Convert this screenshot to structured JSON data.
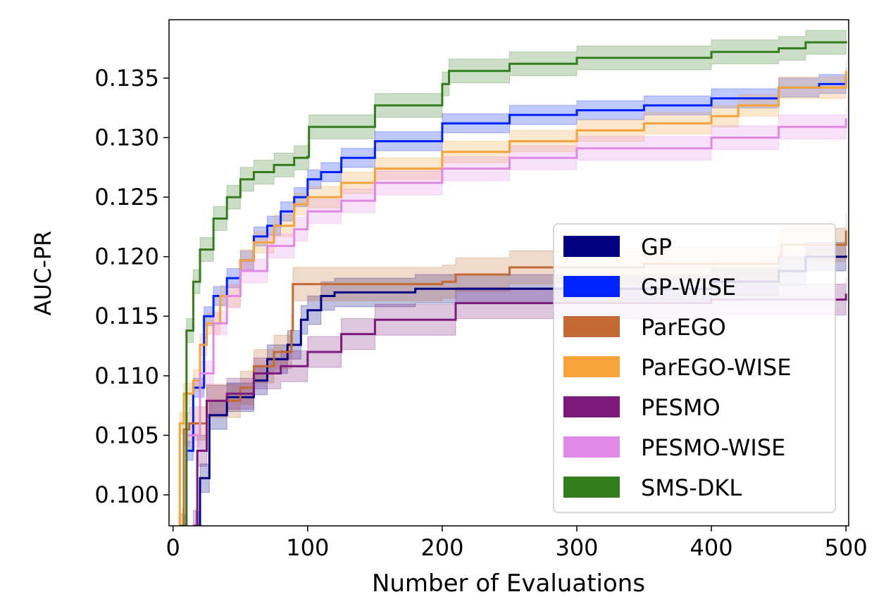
{
  "chart_data": {
    "type": "line",
    "title": "",
    "xlabel": "Number of Evaluations",
    "ylabel": "AUC-PR",
    "xlim": [
      -3,
      502
    ],
    "ylim": [
      0.0974,
      0.1399
    ],
    "xticks": [
      0,
      100,
      200,
      300,
      400,
      500
    ],
    "yticks": [
      0.1,
      0.105,
      0.11,
      0.115,
      0.12,
      0.125,
      0.13,
      0.135
    ],
    "ytick_labels": [
      "0.100",
      "0.105",
      "0.110",
      "0.115",
      "0.120",
      "0.125",
      "0.130",
      "0.135"
    ],
    "grid": false,
    "legend_placement": "lower-right",
    "series": [
      {
        "name": "GP",
        "color": "#000080",
        "band": 0.0012,
        "x": [
          17,
          20,
          27,
          40,
          60,
          70,
          85,
          95,
          100,
          110,
          120,
          180,
          400,
          450,
          470,
          500
        ],
        "y": [
          0.0974,
          0.1014,
          0.1067,
          0.1082,
          0.1096,
          0.1114,
          0.1126,
          0.1147,
          0.1155,
          0.1167,
          0.117,
          0.1173,
          0.1179,
          0.1188,
          0.12,
          0.1201
        ]
      },
      {
        "name": "GP-WISE",
        "color": "#0022ff",
        "band": 0.0008,
        "x": [
          8,
          10,
          15,
          23,
          30,
          40,
          50,
          60,
          70,
          80,
          90,
          100,
          110,
          125,
          150,
          200,
          250,
          300,
          350,
          400,
          450,
          480,
          500
        ],
        "y": [
          0.0974,
          0.1037,
          0.109,
          0.115,
          0.1167,
          0.1182,
          0.1197,
          0.1217,
          0.1226,
          0.1238,
          0.125,
          0.1265,
          0.1271,
          0.1283,
          0.1297,
          0.1312,
          0.1319,
          0.1323,
          0.1327,
          0.1333,
          0.1342,
          0.1345,
          0.1351
        ]
      },
      {
        "name": "ParEGO",
        "color": "#c46a34",
        "band": 0.0014,
        "x": [
          7,
          8,
          12,
          25,
          50,
          60,
          75,
          88,
          89,
          200,
          210,
          250,
          350,
          450,
          452,
          500
        ],
        "y": [
          0.0974,
          0.1055,
          0.106,
          0.1079,
          0.109,
          0.1108,
          0.112,
          0.1138,
          0.1177,
          0.1179,
          0.1185,
          0.1191,
          0.1194,
          0.12,
          0.121,
          0.1222
        ]
      },
      {
        "name": "ParEGO-WISE",
        "color": "#f5a33a",
        "band": 0.0009,
        "x": [
          4,
          5,
          8,
          15,
          20,
          25,
          35,
          50,
          60,
          75,
          90,
          100,
          125,
          150,
          200,
          250,
          300,
          350,
          400,
          420,
          450,
          500
        ],
        "y": [
          0.0974,
          0.106,
          0.1085,
          0.1096,
          0.1126,
          0.1144,
          0.1167,
          0.1197,
          0.1212,
          0.1226,
          0.1244,
          0.125,
          0.1262,
          0.1274,
          0.1288,
          0.1297,
          0.1306,
          0.1312,
          0.1318,
          0.1327,
          0.1342,
          0.1356
        ]
      },
      {
        "name": "PESMO",
        "color": "#7b1a7b",
        "band": 0.0013,
        "x": [
          15,
          18,
          25,
          40,
          60,
          80,
          100,
          125,
          150,
          210,
          400,
          500
        ],
        "y": [
          0.0974,
          0.1037,
          0.1079,
          0.1085,
          0.1102,
          0.1108,
          0.112,
          0.1135,
          0.1147,
          0.1161,
          0.1164,
          0.1169
        ]
      },
      {
        "name": "PESMO-WISE",
        "color": "#e08ae6",
        "band": 0.001,
        "x": [
          8,
          10,
          20,
          30,
          40,
          50,
          70,
          90,
          100,
          125,
          150,
          200,
          250,
          300,
          400,
          450,
          500
        ],
        "y": [
          0.0974,
          0.105,
          0.1102,
          0.1144,
          0.1167,
          0.1188,
          0.1209,
          0.1223,
          0.1238,
          0.1247,
          0.1262,
          0.1274,
          0.1283,
          0.1291,
          0.13,
          0.1309,
          0.1316
        ]
      },
      {
        "name": "SMS-DKL",
        "color": "#347d1e",
        "band": 0.001,
        "x": [
          5,
          10,
          15,
          20,
          30,
          40,
          50,
          60,
          75,
          90,
          100,
          101,
          150,
          200,
          205,
          250,
          300,
          400,
          450,
          470,
          500
        ],
        "y": [
          0.0974,
          0.1138,
          0.1179,
          0.1206,
          0.1232,
          0.125,
          0.1265,
          0.1271,
          0.1277,
          0.1283,
          0.1284,
          0.1309,
          0.1327,
          0.1345,
          0.1356,
          0.1362,
          0.1367,
          0.1372,
          0.1375,
          0.138,
          0.1381
        ]
      }
    ]
  }
}
